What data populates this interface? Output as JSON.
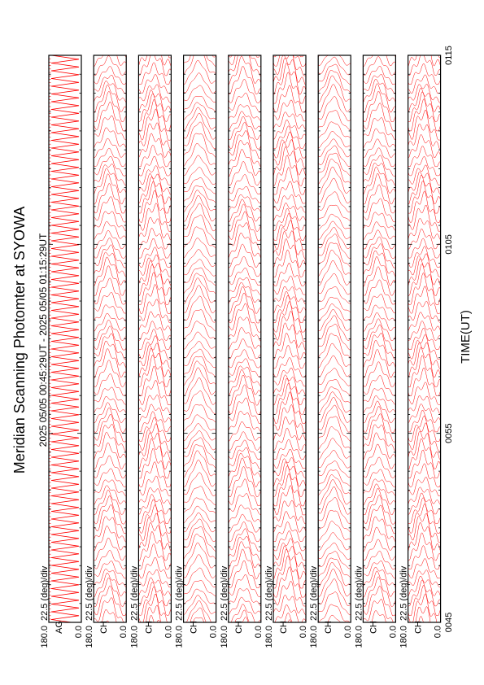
{
  "chart_data": {
    "type": "line",
    "title": "Meridian Scanning Photomter at SYOWA",
    "subtitle": "2025 05/05 00:45:29UT - 2025 05/05 01:15:29UT",
    "xlabel": "TIME(UT)",
    "x_ticks": [
      "0045",
      "0055",
      "0105",
      "0115"
    ],
    "xlim_minutes": [
      45,
      75
    ],
    "scale_label": "22.5 (deg)/div",
    "ylim_deg": [
      0.0,
      180.0
    ],
    "y_tick_labels": [
      "180.0",
      "0.0"
    ],
    "series_color": "#ff0000",
    "panels": [
      {
        "channel": "AG",
        "scale_label": "22.5 (deg)/div"
      },
      {
        "channel": "CH",
        "scale_label": "22.5 (deg)/div"
      },
      {
        "channel": "CH",
        "scale_label": "22.5 (deg)/div"
      },
      {
        "channel": "CH",
        "scale_label": "22.5 (deg)/div"
      },
      {
        "channel": "CH",
        "scale_label": "22.5 (deg)/div"
      },
      {
        "channel": "CH",
        "scale_label": "22.5 (deg)/div"
      },
      {
        "channel": "CH",
        "scale_label": "22.5 (deg)/div"
      },
      {
        "channel": "CH",
        "scale_label": "22.5 (deg)/div"
      },
      {
        "channel": "CH",
        "scale_label": "22.5 (deg)/div"
      }
    ]
  }
}
